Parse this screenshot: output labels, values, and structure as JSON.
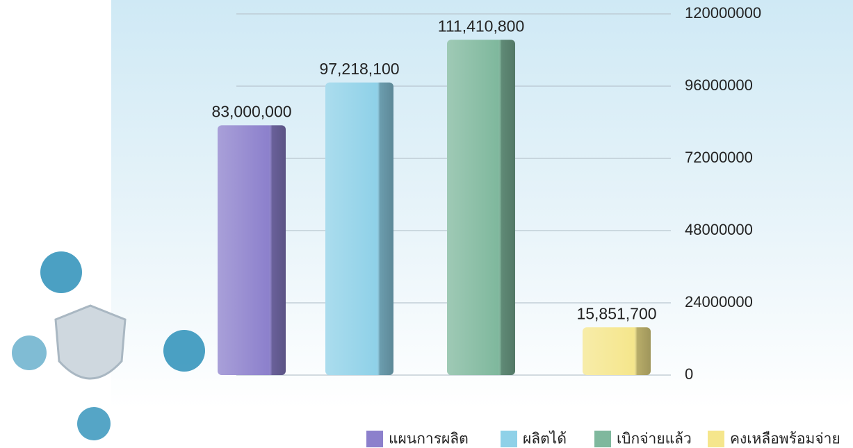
{
  "chart_data": {
    "type": "bar",
    "categories": [
      "แผนการผลิต",
      "ผลิตได้",
      "เบิกจ่ายแล้ว",
      "คงเหลือพร้อมจ่าย"
    ],
    "values": [
      83000000,
      97218100,
      111410800,
      15851700
    ],
    "value_labels": [
      "83,000,000",
      "97,218,100",
      "111,410,800",
      "15,851,700"
    ],
    "colors": [
      "#8c80cc",
      "#8fd1e8",
      "#7fb89d",
      "#f5e68c"
    ],
    "ylim": [
      0,
      120000000
    ],
    "yticks": [
      0,
      24000000,
      48000000,
      72000000,
      96000000,
      120000000
    ],
    "grid": true,
    "legend": "bottom-right"
  }
}
